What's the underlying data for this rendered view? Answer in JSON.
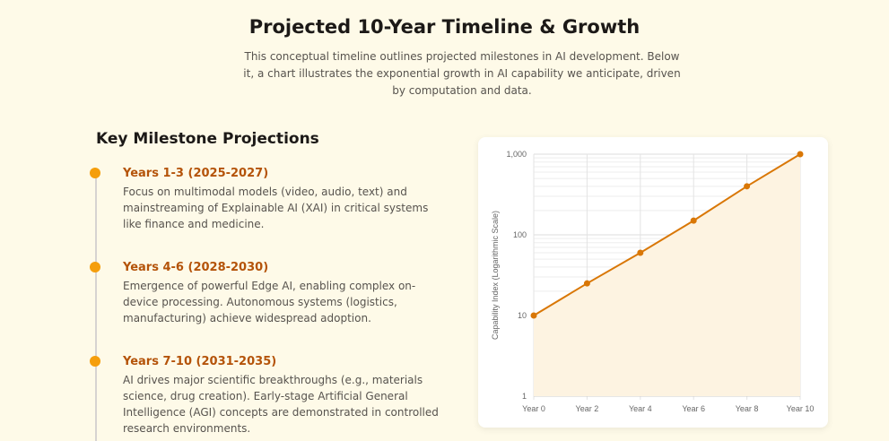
{
  "header": {
    "title": "Projected 10-Year Timeline & Growth",
    "intro": "This conceptual timeline outlines projected milestones in AI development. Below it, a chart illustrates the exponential growth in AI capability we anticipate, driven by computation and data."
  },
  "milestones": {
    "heading": "Key Milestone Projections",
    "items": [
      {
        "title": "Years 1-3 (2025-2027)",
        "text": "Focus on multimodal models (video, audio, text) and mainstreaming of Explainable AI (XAI) in critical systems like finance and medicine."
      },
      {
        "title": "Years 4-6 (2028-2030)",
        "text": "Emergence of powerful Edge AI, enabling complex on-device processing. Autonomous systems (logistics, manufacturing) achieve widespread adoption."
      },
      {
        "title": "Years 7-10 (2031-2035)",
        "text": "AI drives major scientific breakthroughs (e.g., materials science, drug creation). Early-stage Artificial General Intelligence (AGI) concepts are demonstrated in controlled research environments."
      }
    ]
  },
  "colors": {
    "accent": "#f59e0b",
    "title": "#b45309",
    "line": "#d97706",
    "fill": "#fdf3e1"
  },
  "chart_data": {
    "type": "line",
    "categories": [
      "Year 0",
      "Year 2",
      "Year 4",
      "Year 6",
      "Year 8",
      "Year 10"
    ],
    "values": [
      10,
      25,
      60,
      150,
      400,
      1000
    ],
    "ylabel": "Capability Index (Logarithmic Scale)",
    "yscale": "log",
    "ylim": [
      1,
      1000
    ],
    "yticks": [
      "1",
      "10",
      "100",
      "1,000"
    ],
    "fill": true,
    "grid": true,
    "legend": "none"
  }
}
